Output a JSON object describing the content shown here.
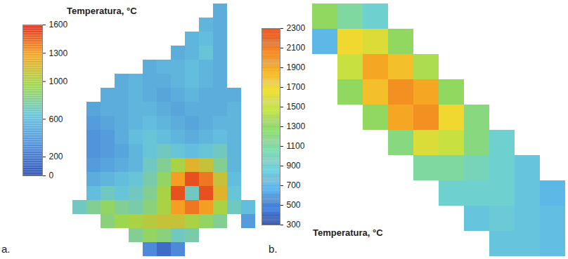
{
  "chart_data": [
    {
      "type": "heatmap",
      "panel": "a.",
      "colorbar": {
        "label": "Temperatura, °C",
        "range": [
          0,
          1600
        ],
        "ticks": [
          0,
          200,
          600,
          1000,
          1300,
          1600
        ]
      },
      "cells": [
        [
          null,
          null,
          null,
          null,
          null,
          null,
          null,
          null,
          null,
          null,
          500,
          null,
          null,
          null
        ],
        [
          null,
          null,
          null,
          null,
          null,
          null,
          null,
          null,
          null,
          550,
          500,
          null,
          null,
          null
        ],
        [
          null,
          null,
          null,
          null,
          null,
          null,
          null,
          null,
          550,
          600,
          500,
          null,
          null,
          null
        ],
        [
          null,
          null,
          null,
          null,
          null,
          null,
          null,
          500,
          550,
          650,
          500,
          null,
          null,
          null
        ],
        [
          null,
          null,
          null,
          null,
          null,
          500,
          550,
          550,
          600,
          550,
          500,
          null,
          null,
          null
        ],
        [
          null,
          null,
          null,
          500,
          550,
          500,
          500,
          550,
          600,
          550,
          500,
          null,
          null,
          null
        ],
        [
          null,
          null,
          500,
          500,
          550,
          500,
          450,
          500,
          550,
          500,
          500,
          500,
          null,
          null
        ],
        [
          null,
          450,
          500,
          500,
          550,
          550,
          500,
          450,
          500,
          500,
          500,
          550,
          null,
          null
        ],
        [
          null,
          400,
          450,
          500,
          550,
          600,
          550,
          500,
          450,
          500,
          550,
          550,
          null,
          null
        ],
        [
          null,
          350,
          400,
          500,
          600,
          650,
          600,
          550,
          500,
          550,
          600,
          550,
          null,
          null
        ],
        [
          null,
          350,
          400,
          450,
          550,
          650,
          700,
          650,
          600,
          650,
          700,
          550,
          null,
          null
        ],
        [
          null,
          400,
          450,
          500,
          550,
          700,
          800,
          1000,
          1200,
          1100,
          800,
          550,
          null,
          null
        ],
        [
          null,
          500,
          550,
          600,
          650,
          750,
          900,
          1300,
          1500,
          1400,
          1100,
          600,
          null,
          null
        ],
        [
          null,
          600,
          700,
          650,
          700,
          800,
          1000,
          1500,
          700,
          1500,
          1200,
          650,
          null,
          null
        ],
        [
          700,
          800,
          900,
          800,
          750,
          850,
          1000,
          1300,
          1400,
          1300,
          1000,
          700,
          600,
          null
        ],
        [
          null,
          null,
          850,
          950,
          1000,
          1050,
          1100,
          1100,
          1000,
          900,
          800,
          null,
          400,
          null
        ],
        [
          null,
          null,
          null,
          null,
          800,
          900,
          850,
          700,
          750,
          null,
          null,
          null,
          null,
          null
        ],
        [
          null,
          null,
          null,
          null,
          null,
          300,
          150,
          300,
          null,
          null,
          null,
          null,
          null,
          null
        ]
      ]
    },
    {
      "type": "heatmap",
      "panel": "b.",
      "colorbar": {
        "label": "Temperatura, °C",
        "range": [
          300,
          2300
        ],
        "ticks": [
          300,
          500,
          700,
          900,
          1100,
          1300,
          1500,
          1700,
          1900,
          2100,
          2300
        ]
      },
      "cells": [
        [
          1300,
          1100,
          900,
          null,
          null,
          null,
          null,
          null,
          null,
          null
        ],
        [
          700,
          1700,
          1600,
          1300,
          null,
          null,
          null,
          null,
          null,
          null
        ],
        [
          null,
          1500,
          1900,
          1800,
          1400,
          null,
          null,
          null,
          null,
          null
        ],
        [
          null,
          1300,
          1800,
          2000,
          1900,
          1300,
          null,
          null,
          null,
          null
        ],
        [
          null,
          null,
          1300,
          1900,
          2000,
          1700,
          1200,
          null,
          null,
          null
        ],
        [
          null,
          null,
          null,
          1200,
          1600,
          1500,
          1200,
          900,
          null,
          null
        ],
        [
          null,
          null,
          null,
          null,
          1100,
          1100,
          1000,
          900,
          800,
          null
        ],
        [
          null,
          null,
          null,
          null,
          null,
          900,
          900,
          900,
          800,
          700
        ],
        [
          null,
          null,
          null,
          null,
          null,
          null,
          800,
          850,
          800,
          750
        ],
        [
          null,
          null,
          null,
          null,
          null,
          null,
          null,
          800,
          800,
          750
        ]
      ]
    }
  ]
}
